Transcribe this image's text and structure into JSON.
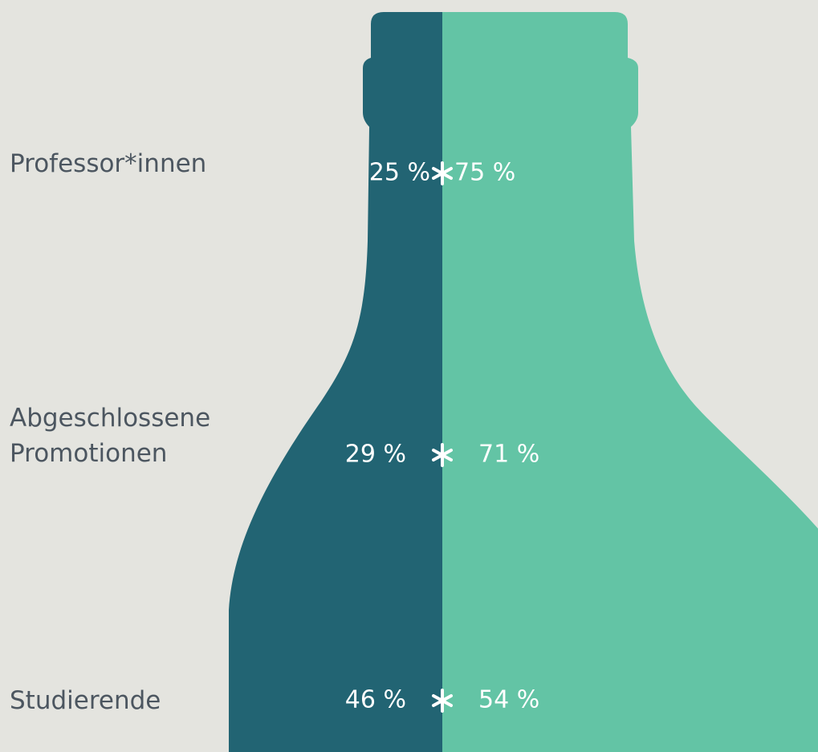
{
  "chart_data": {
    "type": "bottle",
    "categories": [
      "Professor*innen",
      "Abgeschlossene Promotionen",
      "Studierende"
    ],
    "series": [
      {
        "color": "#226473",
        "values": [
          25,
          29,
          46
        ],
        "value_labels": [
          "25 %",
          "29 %",
          "46 %"
        ]
      },
      {
        "color": "#63c4a5",
        "values": [
          75,
          71,
          54
        ],
        "value_labels": [
          "75 %",
          "71 %",
          "54 %"
        ]
      }
    ]
  }
}
